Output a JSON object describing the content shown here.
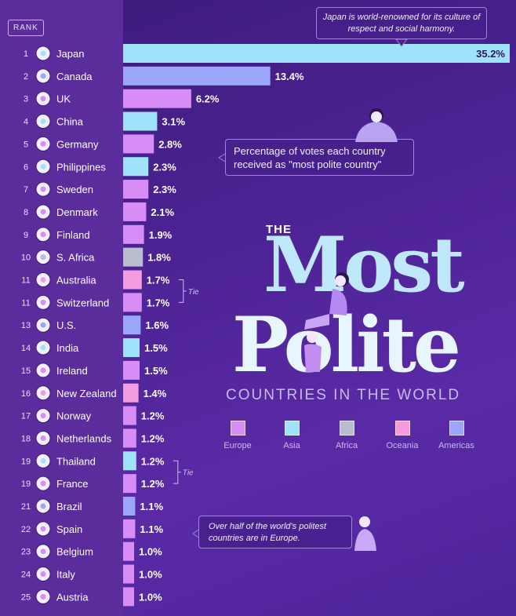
{
  "rank_header": "RANK",
  "title": {
    "the": "THE",
    "most": "Most",
    "polite": "Polite",
    "subtitle": "COUNTRIES IN THE WORLD"
  },
  "callouts": {
    "japan": "Japan is world-renowned for its culture of respect and social harmony.",
    "votes": "Percentage of votes each country received as \"most polite country\"",
    "europe": "Over half of the world's politest countries are in Europe."
  },
  "tie_label": "Tie",
  "legend": [
    {
      "name": "Europe",
      "color": "#d88cf6"
    },
    {
      "name": "Asia",
      "color": "#9fe3f8"
    },
    {
      "name": "Africa",
      "color": "#b8bdd0"
    },
    {
      "name": "Oceania",
      "color": "#f59ce0"
    },
    {
      "name": "Americas",
      "color": "#9aa6f8"
    }
  ],
  "chart_data": {
    "type": "bar",
    "orientation": "horizontal",
    "unit": "%",
    "xlim": [
      0,
      35.2
    ],
    "categories": [
      "Japan",
      "Canada",
      "UK",
      "China",
      "Germany",
      "Philippines",
      "Sweden",
      "Denmark",
      "Finland",
      "S. Africa",
      "Australia",
      "Switzerland",
      "U.S.",
      "India",
      "Ireland",
      "New Zealand",
      "Norway",
      "Netherlands",
      "Thailand",
      "France",
      "Brazil",
      "Spain",
      "Belgium",
      "Italy",
      "Austria"
    ],
    "ranks": [
      "1",
      "2",
      "3",
      "4",
      "5",
      "6",
      "7",
      "8",
      "9",
      "10",
      "11",
      "11",
      "13",
      "14",
      "15",
      "16",
      "17",
      "18",
      "19",
      "19",
      "21",
      "22",
      "23",
      "24",
      "25"
    ],
    "values": [
      35.2,
      13.4,
      6.2,
      3.1,
      2.8,
      2.3,
      2.3,
      2.1,
      1.9,
      1.8,
      1.7,
      1.7,
      1.6,
      1.5,
      1.5,
      1.4,
      1.2,
      1.2,
      1.2,
      1.2,
      1.1,
      1.1,
      1.0,
      1.0,
      1.0
    ],
    "labels": [
      "35.2%",
      "13.4%",
      "6.2%",
      "3.1%",
      "2.8%",
      "2.3%",
      "2.3%",
      "2.1%",
      "1.9%",
      "1.8%",
      "1.7%",
      "1.7%",
      "1.6%",
      "1.5%",
      "1.5%",
      "1.4%",
      "1.2%",
      "1.2%",
      "1.2%",
      "1.2%",
      "1.1%",
      "1.1%",
      "1.0%",
      "1.0%",
      "1.0%"
    ],
    "regions": [
      "Asia",
      "Americas",
      "Europe",
      "Asia",
      "Europe",
      "Asia",
      "Europe",
      "Europe",
      "Europe",
      "Africa",
      "Oceania",
      "Europe",
      "Americas",
      "Asia",
      "Europe",
      "Oceania",
      "Europe",
      "Europe",
      "Asia",
      "Europe",
      "Americas",
      "Europe",
      "Europe",
      "Europe",
      "Europe"
    ],
    "ties": [
      [
        10,
        11
      ],
      [
        18,
        19
      ]
    ]
  }
}
